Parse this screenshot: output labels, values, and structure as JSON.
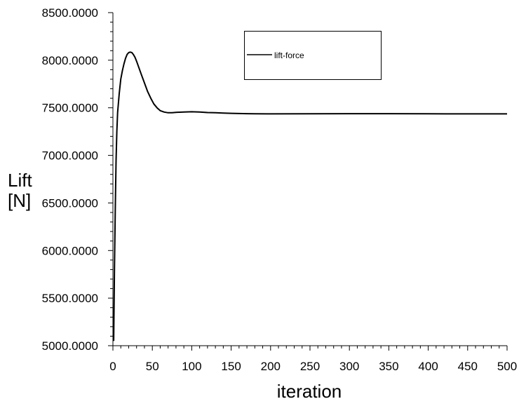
{
  "chart_data": {
    "type": "line",
    "xlabel": "iteration",
    "ylabel": "Lift\n[N]",
    "xlim": [
      0,
      500
    ],
    "ylim": [
      5000,
      8500
    ],
    "x_ticks": [
      0,
      50,
      100,
      150,
      200,
      250,
      300,
      350,
      400,
      450,
      500
    ],
    "x_tick_labels": [
      "0",
      "50",
      "100",
      "150",
      "200",
      "250",
      "300",
      "350",
      "400",
      "450",
      "500"
    ],
    "y_ticks": [
      5000,
      5500,
      6000,
      6500,
      7000,
      7500,
      8000,
      8500
    ],
    "y_tick_labels": [
      "5000.0000",
      "5500.0000",
      "6000.0000",
      "6500.0000",
      "7000.0000",
      "7500.0000",
      "8000.0000",
      "8500.0000"
    ],
    "grid": false,
    "legend_position": "top-right",
    "series": [
      {
        "name": "lift-force",
        "color": "#000000",
        "x": [
          1,
          2,
          3,
          4,
          5,
          6,
          8,
          10,
          12,
          14,
          16,
          18,
          20,
          22,
          24,
          26,
          28,
          30,
          33,
          36,
          40,
          44,
          48,
          52,
          56,
          60,
          65,
          70,
          75,
          80,
          90,
          100,
          110,
          120,
          130,
          140,
          150,
          160,
          170,
          180,
          200,
          250,
          300,
          350,
          400,
          450,
          500
        ],
        "y": [
          5050,
          5800,
          6450,
          6950,
          7250,
          7450,
          7650,
          7800,
          7890,
          7960,
          8020,
          8060,
          8080,
          8085,
          8080,
          8060,
          8030,
          7990,
          7920,
          7850,
          7760,
          7670,
          7600,
          7540,
          7500,
          7470,
          7455,
          7448,
          7448,
          7452,
          7455,
          7458,
          7455,
          7450,
          7448,
          7445,
          7442,
          7440,
          7438,
          7437,
          7436,
          7437,
          7438,
          7438,
          7437,
          7436,
          7436
        ]
      }
    ]
  }
}
